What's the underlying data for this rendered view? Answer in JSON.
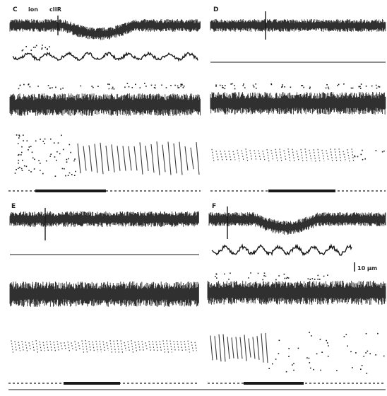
{
  "figure": {
    "panels": [
      {
        "id": "C",
        "label": "C",
        "annotations": [
          "ion",
          "cIIR"
        ]
      },
      {
        "id": "D",
        "label": "D",
        "annotations": []
      },
      {
        "id": "E",
        "label": "E",
        "annotations": []
      },
      {
        "id": "F",
        "label": "F",
        "annotations": []
      }
    ],
    "scale_bar": {
      "label": "10 μm"
    },
    "ink_color": "#1a1a1a",
    "background_color": "#ffffff"
  }
}
